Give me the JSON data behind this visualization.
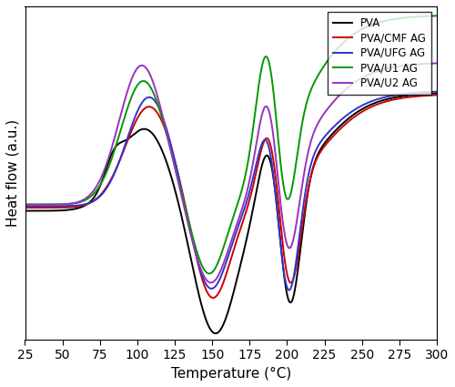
{
  "xlabel": "Temperature (°C)",
  "ylabel": "Heat flow (a.u.)",
  "xlim": [
    25,
    300
  ],
  "legend_labels": [
    "PVA",
    "PVA/CMF AG",
    "PVA/UFG AG",
    "PVA/U1 AG",
    "PVA/U2 AG"
  ],
  "colors": [
    "#000000",
    "#cc0000",
    "#3333cc",
    "#009900",
    "#9933bb"
  ],
  "linewidth": 1.4
}
